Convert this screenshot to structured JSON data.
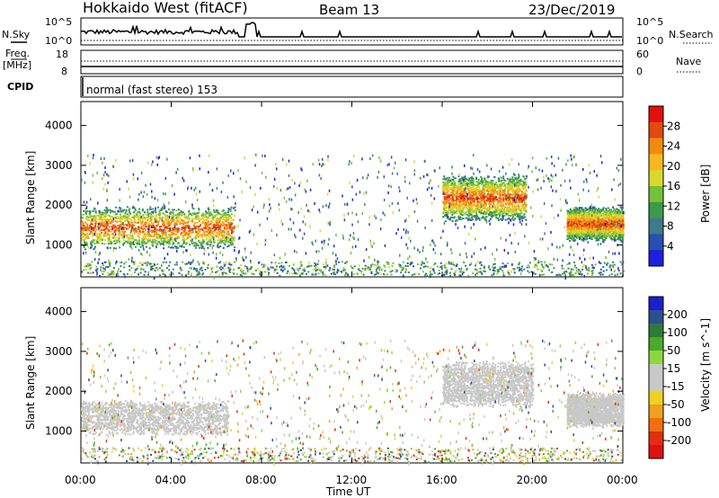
{
  "header": {
    "title": "Hokkaido West (fitACF)",
    "beam": "Beam 13",
    "date": "23/Dec/2019"
  },
  "noise_panel": {
    "left_label": "N.Sky",
    "left_ticks": [
      "10^5",
      "10^0"
    ],
    "right_label": "N.Search",
    "right_ticks": [
      "10^5",
      "10^0"
    ]
  },
  "freq_panel": {
    "left_label_1": "Freq.",
    "left_label_2": "[MHz]",
    "left_ticks": [
      "18",
      "8"
    ],
    "right_label": "Nave",
    "right_ticks": [
      "60",
      "0"
    ]
  },
  "cpid_panel": {
    "label": "CPID",
    "text": "normal (fast stereo) 153"
  },
  "x_axis": {
    "label": "Time UT",
    "ticks": [
      "00:00",
      "04:00",
      "08:00",
      "12:00",
      "16:00",
      "20:00",
      "00:00"
    ]
  },
  "chart_data": [
    {
      "type": "heatmap",
      "name": "power",
      "ylabel": "Slant Range [km]",
      "y_ticks": [
        "1000",
        "2000",
        "3000",
        "4000"
      ],
      "ylim": [
        200,
        4600
      ],
      "xlim_hours": [
        0,
        24
      ],
      "colorbar": {
        "label": "Power [dB]",
        "ticks": [
          "4",
          "8",
          "12",
          "16",
          "20",
          "24",
          "28"
        ],
        "colors": [
          "#1f1fe0",
          "#2a4fb0",
          "#3c7a8c",
          "#3c9a4a",
          "#72c23a",
          "#d8d830",
          "#f6b820",
          "#f08a10",
          "#e04a10",
          "#e01010"
        ]
      },
      "echo_regions": [
        {
          "t_start": 0.0,
          "t_end": 6.8,
          "r_min": 900,
          "r_max": 2000,
          "value": "16-28 dB"
        },
        {
          "t_start": 16.0,
          "t_end": 19.7,
          "r_min": 1600,
          "r_max": 2800,
          "value": "12-24 dB"
        },
        {
          "t_start": 21.5,
          "t_end": 24.0,
          "r_min": 1100,
          "r_max": 2000,
          "value": "16-28 dB"
        }
      ]
    },
    {
      "type": "heatmap",
      "name": "velocity",
      "ylabel": "Slant Range [km]",
      "y_ticks": [
        "1000",
        "2000",
        "3000",
        "4000"
      ],
      "ylim": [
        200,
        4600
      ],
      "xlim_hours": [
        0,
        24
      ],
      "colorbar": {
        "label": "Velocity [m s^-1]",
        "ticks": [
          "200",
          "100",
          "50",
          "15",
          "-15",
          "-50",
          "-100",
          "-200"
        ],
        "colors": [
          "#1a20c8",
          "#2a5090",
          "#2f7a3a",
          "#4caa2a",
          "#8cd640",
          "#c8c8c8",
          "#c8c8c8",
          "#f0d020",
          "#f0a020",
          "#f07010",
          "#e03010",
          "#e01010"
        ]
      },
      "echo_regions": [
        {
          "t_start": 0.0,
          "t_end": 6.5,
          "r_min": 900,
          "r_max": 1800,
          "value": "-15 to 15 m/s"
        },
        {
          "t_start": 16.0,
          "t_end": 20.0,
          "r_min": 1600,
          "r_max": 2800,
          "value": "-15 to 15 m/s"
        },
        {
          "t_start": 21.5,
          "t_end": 24.0,
          "r_min": 1100,
          "r_max": 2000,
          "value": "-15 to 15 m/s"
        }
      ]
    }
  ]
}
